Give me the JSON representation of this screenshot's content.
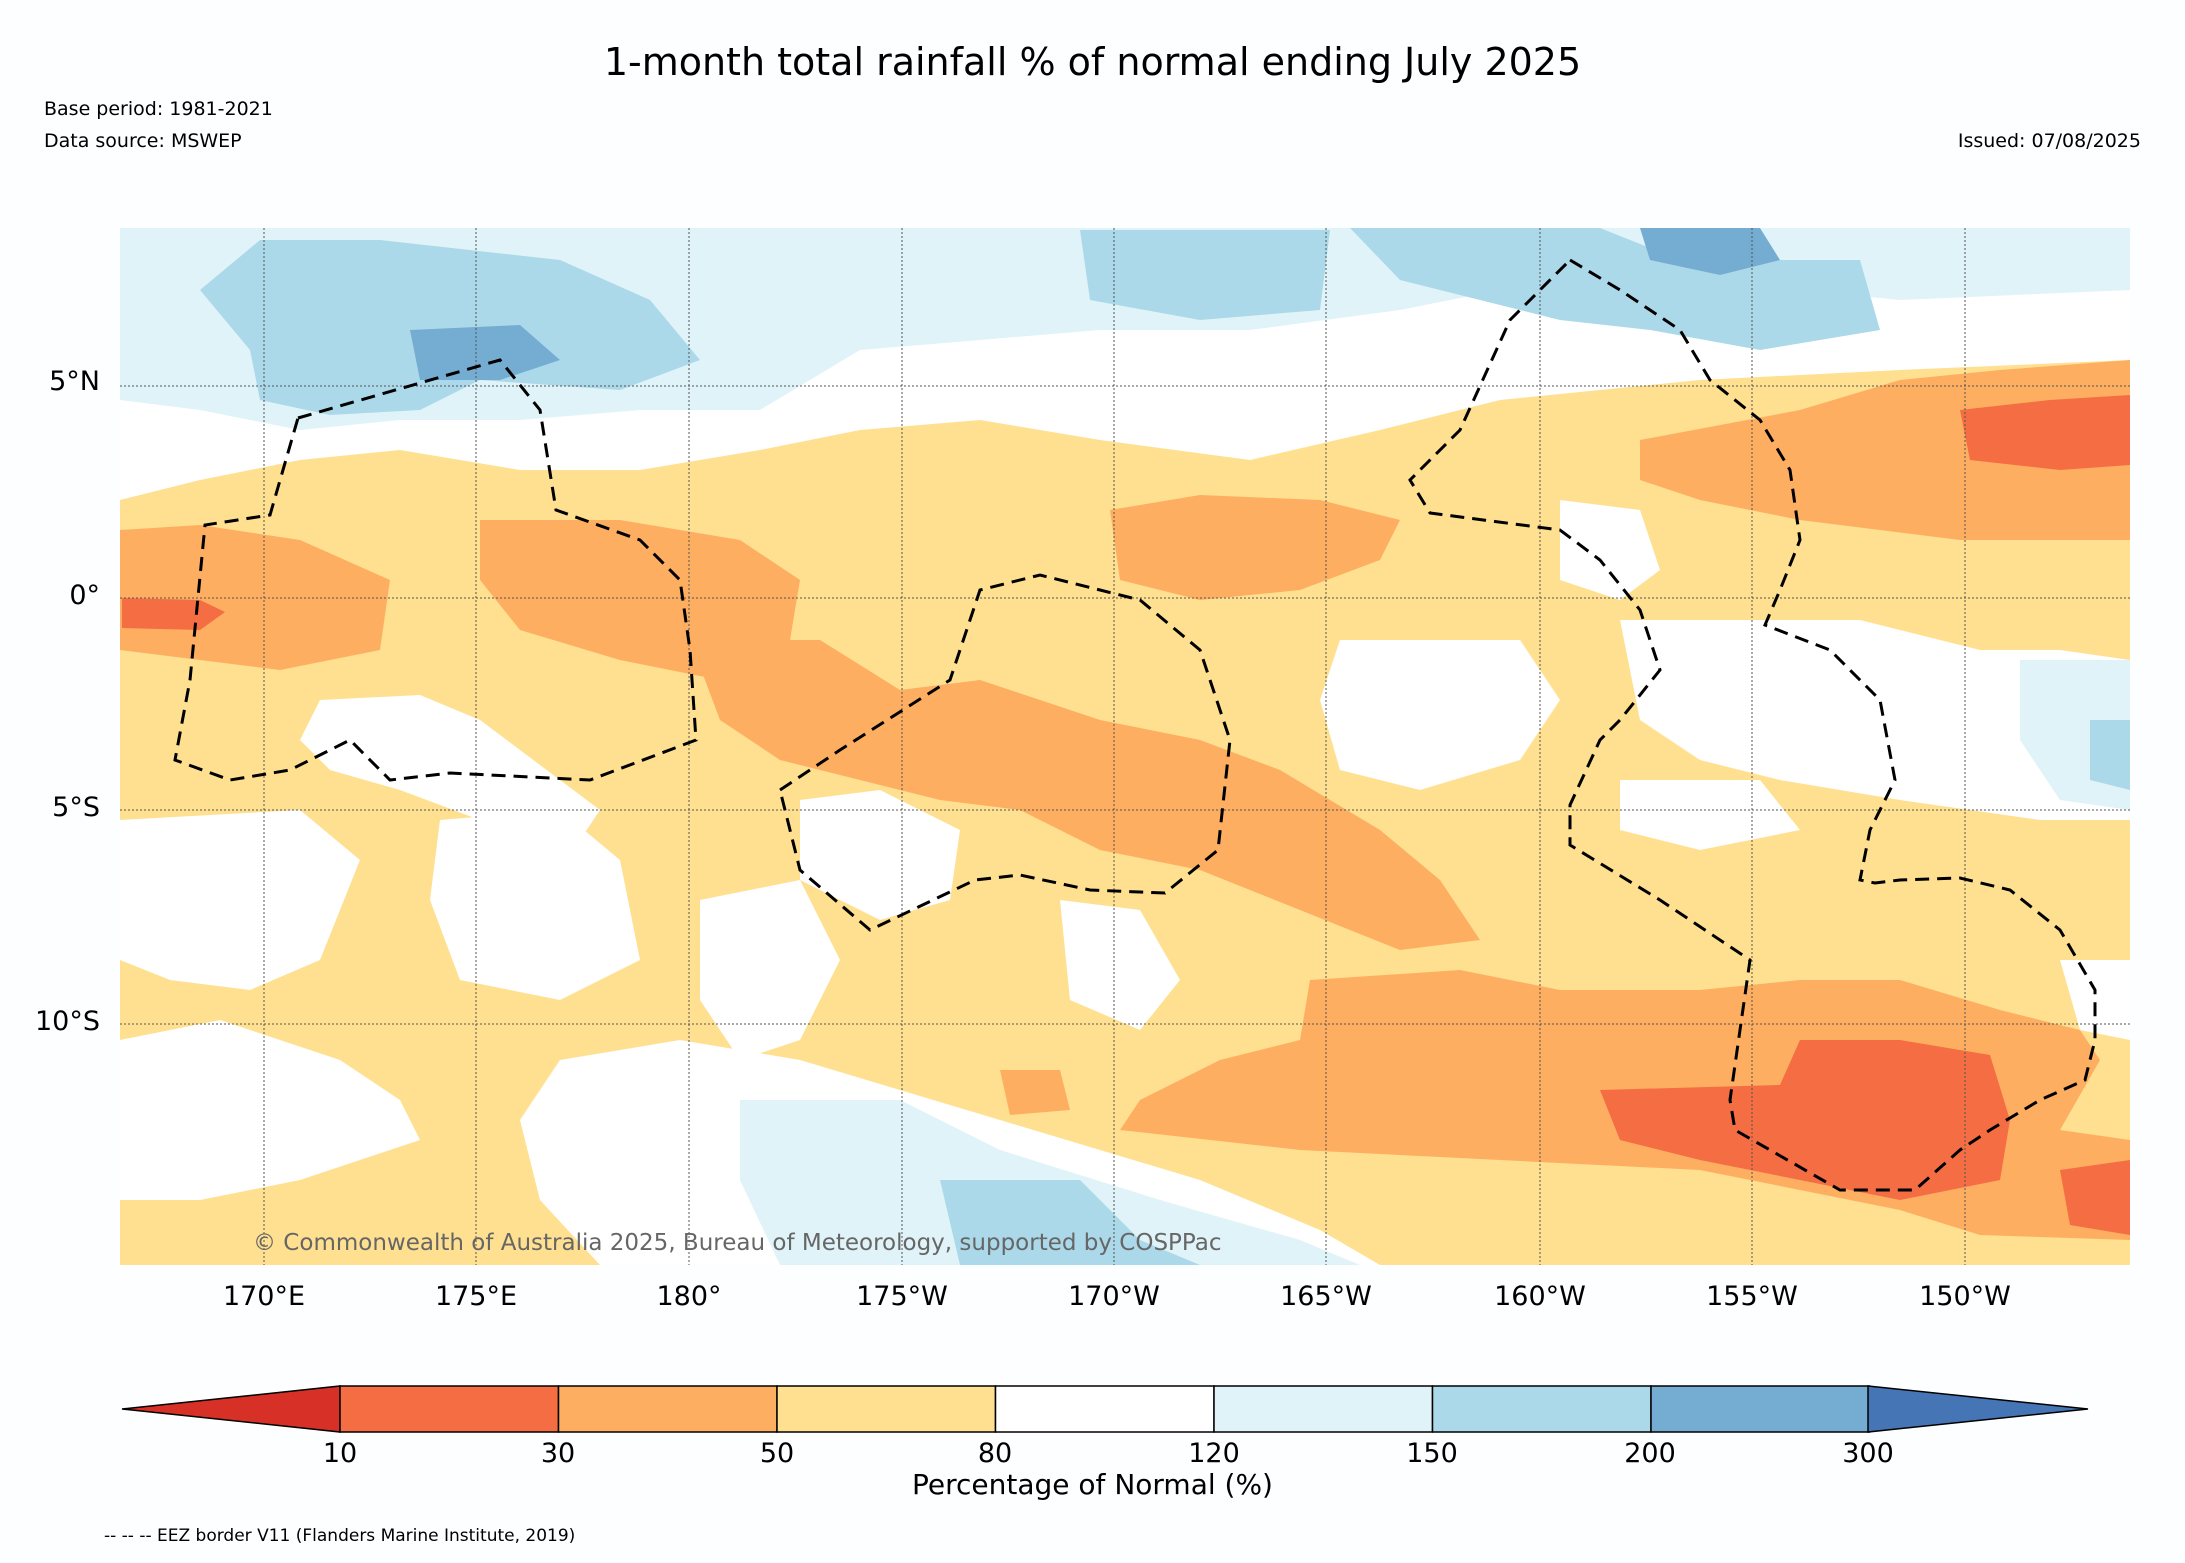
{
  "title": "1-month total rainfall % of normal ending July 2025",
  "base_period": "Base period: 1981-2021",
  "data_source": "Data source: MSWEP",
  "issued": "Issued: 07/08/2025",
  "copyright": "© Commonwealth of Australia 2025, Bureau of Meteorology, supported by COSPPac",
  "lat_labels": [
    "5°N",
    "0°",
    "5°S",
    "10°S"
  ],
  "lon_labels": [
    "170°E",
    "175°E",
    "180°",
    "175°W",
    "170°W",
    "165°W",
    "160°W",
    "155°W",
    "150°W"
  ],
  "colorbar": {
    "title": "Percentage of Normal (%)",
    "thresholds": [
      "10",
      "30",
      "50",
      "80",
      "120",
      "150",
      "200",
      "300"
    ],
    "colors": [
      "#d73027",
      "#f46d43",
      "#fdae61",
      "#fee090",
      "#ffffff",
      "#e0f3f8",
      "#abd9e9",
      "#74add1",
      "#4575b4"
    ]
  },
  "eez_legend": "-- -- -- EEZ border V11 (Flanders Marine Institute, 2019)"
}
